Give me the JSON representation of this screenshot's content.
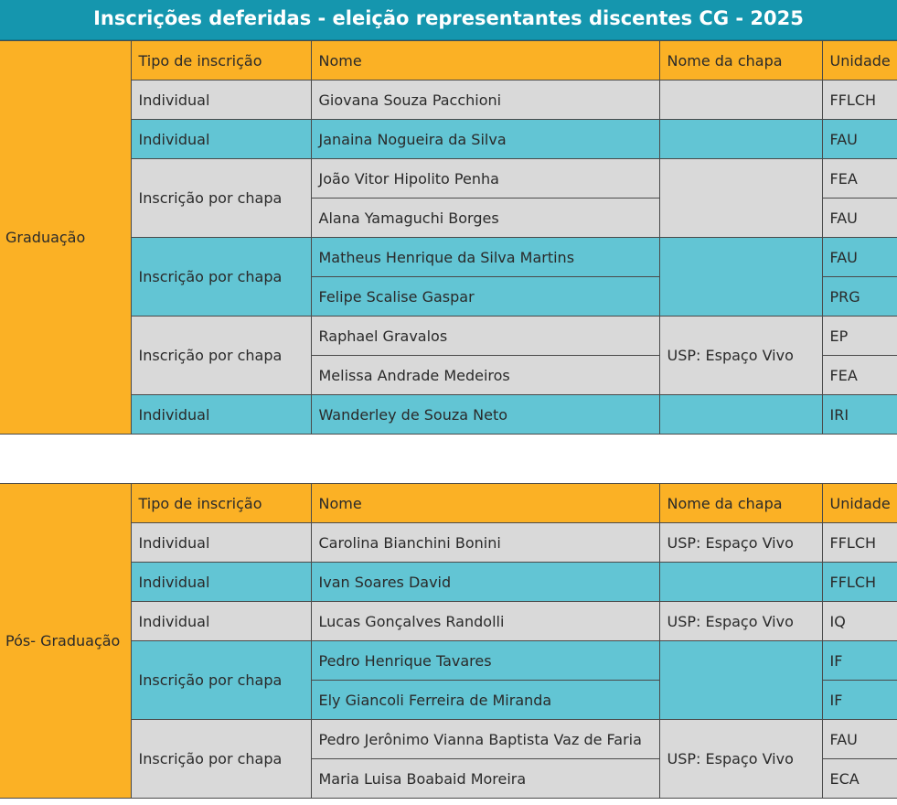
{
  "title": "Inscrições deferidas - eleição representantes discentes CG - 2025",
  "columns": {
    "tipo": "Tipo de inscrição",
    "nome": "Nome",
    "chapa": "Nome da chapa",
    "unidade": "Unidade"
  },
  "colors": {
    "header_teal": "#1596ae",
    "orange": "#fbb125",
    "gray": "#d9d9d9",
    "teal": "#62c5d4"
  },
  "sections": [
    {
      "level": "Graduação",
      "groups": [
        {
          "tipo": "Individual",
          "chapa": "",
          "members": [
            {
              "nome": "Giovana Souza Pacchioni",
              "unidade": "FFLCH"
            }
          ]
        },
        {
          "tipo": "Individual",
          "chapa": "",
          "members": [
            {
              "nome": "Janaina Nogueira da Silva",
              "unidade": "FAU"
            }
          ]
        },
        {
          "tipo": "Inscrição por chapa",
          "chapa": "",
          "members": [
            {
              "nome": "João Vitor Hipolito Penha",
              "unidade": "FEA"
            },
            {
              "nome": "Alana Yamaguchi Borges",
              "unidade": "FAU"
            }
          ]
        },
        {
          "tipo": "Inscrição por chapa",
          "chapa": "",
          "members": [
            {
              "nome": "Matheus Henrique da Silva Martins",
              "unidade": "FAU"
            },
            {
              "nome": "Felipe Scalise Gaspar",
              "unidade": "PRG"
            }
          ]
        },
        {
          "tipo": "Inscrição por chapa",
          "chapa": "USP: Espaço Vivo",
          "members": [
            {
              "nome": "Raphael Gravalos",
              "unidade": "EP"
            },
            {
              "nome": "Melissa Andrade Medeiros",
              "unidade": "FEA"
            }
          ]
        },
        {
          "tipo": "Individual",
          "chapa": "",
          "members": [
            {
              "nome": "Wanderley de Souza Neto",
              "unidade": "IRI"
            }
          ]
        }
      ]
    },
    {
      "level": "Pós- Graduação",
      "groups": [
        {
          "tipo": "Individual",
          "chapa": "USP: Espaço Vivo",
          "members": [
            {
              "nome": "Carolina Bianchini Bonini",
              "unidade": "FFLCH"
            }
          ]
        },
        {
          "tipo": "Individual",
          "chapa": "",
          "members": [
            {
              "nome": "Ivan Soares David",
              "unidade": "FFLCH"
            }
          ]
        },
        {
          "tipo": "Individual",
          "chapa": "USP: Espaço Vivo",
          "members": [
            {
              "nome": "Lucas Gonçalves Randolli",
              "unidade": "IQ"
            }
          ]
        },
        {
          "tipo": "Inscrição por chapa",
          "chapa": "",
          "members": [
            {
              "nome": "Pedro Henrique Tavares",
              "unidade": "IF"
            },
            {
              "nome": "Ely Giancoli Ferreira de Miranda",
              "unidade": "IF"
            }
          ]
        },
        {
          "tipo": "Inscrição por chapa",
          "chapa": "USP: Espaço Vivo",
          "members": [
            {
              "nome": "Pedro Jerônimo Vianna Baptista Vaz de Faria",
              "unidade": "FAU"
            },
            {
              "nome": "Maria Luisa Boabaid Moreira",
              "unidade": "ECA"
            }
          ]
        }
      ]
    }
  ]
}
